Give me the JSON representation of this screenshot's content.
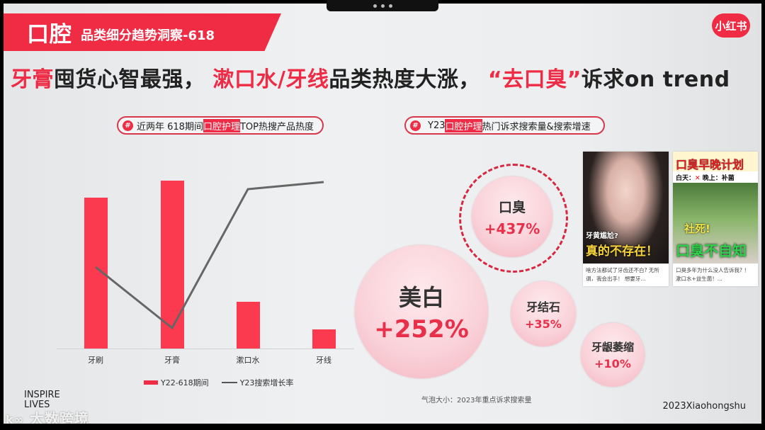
{
  "header": {
    "banner_title": "口腔",
    "banner_subtitle": "品类细分趋势洞察-618",
    "logo": "小红书"
  },
  "headline": {
    "part1_red": "牙膏",
    "part2": "囤货心智最强，",
    "part3_red": "漱口水/牙线",
    "part4": "品类热度大涨，",
    "part5_red": "“去口臭”",
    "part6": "诉求on trend"
  },
  "left_panel": {
    "tag": {
      "icon": "#",
      "before": "近两年 618期间",
      "highlight": "口腔护理",
      "after": "TOP热搜产品热度"
    }
  },
  "right_panel": {
    "tag": {
      "icon": "#",
      "before": "Y23",
      "highlight": "口腔护理",
      "after": "热门诉求搜索量&搜索增速"
    },
    "footnote": "气泡大小：2023年重点诉求搜索量"
  },
  "thumbnails": [
    {
      "overlay_small": "牙黄尴尬?",
      "overlay_big": "真的不存在！",
      "caption": "啥方法都试了牙齿还不白? 无所谓，我会出手！ 想要牙..."
    },
    {
      "overlay_title": "口臭早晚计划",
      "overlay_sub_day": "白天：",
      "overlay_sub_night": "晚上：补菌",
      "overlay_small": "社死!",
      "overlay_big": "口臭不自知",
      "caption": "口臭多年为什么没人告诉我? ！ 漱口水+益生菌！..."
    }
  ],
  "chart_data": [
    {
      "type": "bar+line",
      "title": "近两年 618期间口腔护理TOP热搜产品热度",
      "categories": [
        "牙刷",
        "牙膏",
        "漱口水",
        "牙线"
      ],
      "series": [
        {
          "name": "Y22-618期间",
          "type": "bar",
          "color": "#fb3a50",
          "values": [
            213,
            237,
            66,
            27
          ]
        },
        {
          "name": "Y23搜索增长率",
          "type": "line",
          "color": "#666666",
          "values": [
            115,
            29,
            225,
            235
          ]
        }
      ],
      "xlabel": "",
      "ylabel": "",
      "grid": false,
      "legend_position": "bottom",
      "note": "No y-axis shown; values are relative (pixel-scaled)"
    },
    {
      "type": "bubble",
      "title": "Y23口腔护理热门诉求搜索量&搜索增速",
      "size_meaning": "气泡大小：2023年重点诉求搜索量",
      "points": [
        {
          "label": "美白",
          "growth": "+252%",
          "growth_value": 252,
          "size": 188,
          "highlighted": false
        },
        {
          "label": "口臭",
          "growth": "+437%",
          "growth_value": 437,
          "size": 120,
          "highlighted": true
        },
        {
          "label": "牙结石",
          "growth": "+35%",
          "growth_value": 35,
          "size": 92,
          "highlighted": false
        },
        {
          "label": "牙龈萎缩",
          "growth": "+10%",
          "growth_value": 10,
          "size": 90,
          "highlighted": false
        }
      ]
    }
  ],
  "footer": {
    "brand": "2023Xiaohongshu",
    "inspire_line1": "INSPIRE",
    "inspire_line2": "LIVES",
    "watermark": "大数跨境"
  }
}
